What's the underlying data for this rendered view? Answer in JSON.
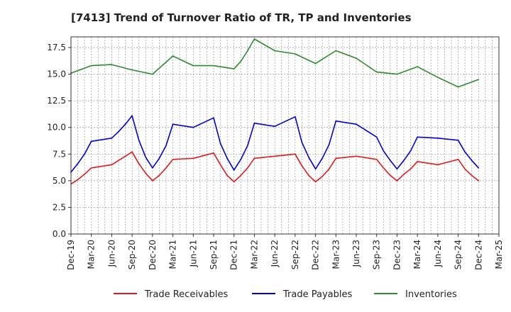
{
  "chart_data": {
    "type": "line",
    "title": "[7413]  Trend of Turnover Ratio of TR, TP and Inventories",
    "xlabel": "",
    "ylabel": "",
    "ylim": [
      0,
      18.5
    ],
    "yticks": [
      "0.0",
      "2.5",
      "5.0",
      "7.5",
      "10.0",
      "12.5",
      "15.0",
      "17.5"
    ],
    "xticks": [
      "Dec-19",
      "Mar-20",
      "Jun-20",
      "Sep-20",
      "Dec-20",
      "Mar-21",
      "Jun-21",
      "Sep-21",
      "Dec-21",
      "Mar-22",
      "Jun-22",
      "Sep-22",
      "Dec-22",
      "Mar-23",
      "Jun-23",
      "Sep-23",
      "Dec-23",
      "Mar-24",
      "Jun-24",
      "Sep-24",
      "Dec-24",
      "Mar-25"
    ],
    "grid": true,
    "legend_position": "bottom",
    "series": [
      {
        "name": "Trade Receivables",
        "color": "#e31a1c",
        "x": [
          "Dec-19",
          "Jan-20",
          "Feb-20",
          "Mar-20",
          "Jun-20",
          "Jul-20",
          "Aug-20",
          "Sep-20",
          "Oct-20",
          "Nov-20",
          "Dec-20",
          "Jan-21",
          "Feb-21",
          "Mar-21",
          "Jun-21",
          "Sep-21",
          "Oct-21",
          "Nov-21",
          "Dec-21",
          "Jan-22",
          "Feb-22",
          "Mar-22",
          "Jun-22",
          "Sep-22",
          "Oct-22",
          "Nov-22",
          "Dec-22",
          "Jan-23",
          "Feb-23",
          "Mar-23",
          "Jun-23",
          "Sep-23",
          "Oct-23",
          "Nov-23",
          "Dec-23",
          "Jan-24",
          "Feb-24",
          "Mar-24",
          "Jun-24",
          "Sep-24",
          "Oct-24",
          "Nov-24",
          "Dec-24"
        ],
        "values": [
          4.7,
          5.1,
          5.6,
          6.2,
          6.5,
          6.9,
          7.3,
          7.7,
          6.6,
          5.7,
          5.0,
          5.5,
          6.2,
          7.0,
          7.1,
          7.6,
          6.5,
          5.5,
          4.9,
          5.5,
          6.2,
          7.1,
          7.3,
          7.5,
          6.4,
          5.5,
          4.9,
          5.4,
          6.1,
          7.1,
          7.3,
          7.0,
          6.2,
          5.5,
          5.0,
          5.6,
          6.1,
          6.8,
          6.5,
          7.0,
          6.1,
          5.5,
          5.0
        ]
      },
      {
        "name": "Trade Payables",
        "color": "#0000dd",
        "x": [
          "Dec-19",
          "Jan-20",
          "Feb-20",
          "Mar-20",
          "Jun-20",
          "Jul-20",
          "Aug-20",
          "Sep-20",
          "Oct-20",
          "Nov-20",
          "Dec-20",
          "Jan-21",
          "Feb-21",
          "Mar-21",
          "Jun-21",
          "Sep-21",
          "Oct-21",
          "Nov-21",
          "Dec-21",
          "Jan-22",
          "Feb-22",
          "Mar-22",
          "Jun-22",
          "Sep-22",
          "Oct-22",
          "Nov-22",
          "Dec-22",
          "Jan-23",
          "Feb-23",
          "Mar-23",
          "Jun-23",
          "Sep-23",
          "Oct-23",
          "Nov-23",
          "Dec-23",
          "Jan-24",
          "Feb-24",
          "Mar-24",
          "Jun-24",
          "Sep-24",
          "Oct-24",
          "Nov-24",
          "Dec-24"
        ],
        "values": [
          5.8,
          6.6,
          7.5,
          8.7,
          9.0,
          9.6,
          10.3,
          11.1,
          8.8,
          7.2,
          6.2,
          7.1,
          8.3,
          10.3,
          10.0,
          10.9,
          8.5,
          7.1,
          6.0,
          7.0,
          8.3,
          10.4,
          10.1,
          11.0,
          8.6,
          7.2,
          6.1,
          7.1,
          8.4,
          10.6,
          10.3,
          9.1,
          7.8,
          6.9,
          6.1,
          6.9,
          7.8,
          9.1,
          9.0,
          8.8,
          7.7,
          6.9,
          6.2
        ]
      },
      {
        "name": "Inventories",
        "color": "#2e8b2e",
        "x": [
          "Dec-19",
          "Mar-20",
          "Jun-20",
          "Sep-20",
          "Dec-20",
          "Mar-21",
          "Jun-21",
          "Sep-21",
          "Dec-21",
          "Jan-22",
          "Feb-22",
          "Mar-22",
          "Jun-22",
          "Sep-22",
          "Dec-22",
          "Mar-23",
          "Jun-23",
          "Sep-23",
          "Dec-23",
          "Mar-24",
          "Jun-24",
          "Sep-24",
          "Dec-24"
        ],
        "values": [
          15.1,
          15.8,
          15.9,
          15.4,
          15.0,
          16.7,
          15.8,
          15.8,
          15.5,
          16.2,
          17.2,
          18.3,
          17.2,
          16.9,
          16.0,
          17.2,
          16.5,
          15.2,
          15.0,
          15.7,
          14.7,
          13.8,
          14.5
        ]
      }
    ]
  }
}
